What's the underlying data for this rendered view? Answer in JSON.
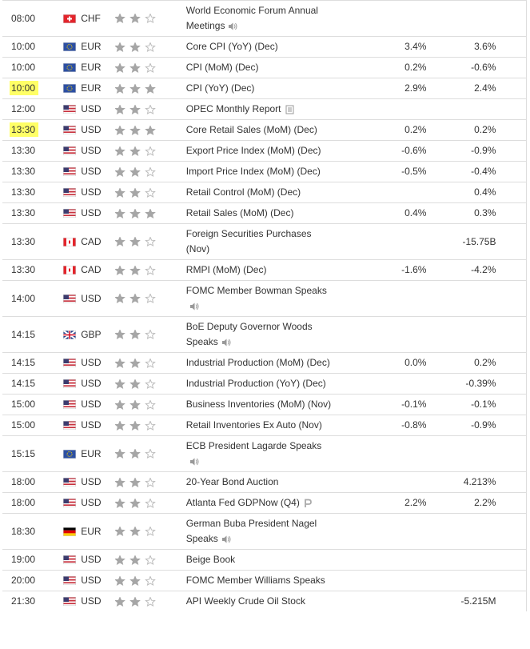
{
  "table": {
    "rows": [
      {
        "time": "08:00",
        "currency": "CHF",
        "importance": 2,
        "event": "World Economic Forum Annual Meetings"
      },
      {
        "time": "10:00",
        "currency": "EUR",
        "importance": 2,
        "event": "Core CPI (YoY) (Dec)",
        "forecast": "3.4%",
        "previous": "3.6%"
      },
      {
        "time": "10:00",
        "currency": "EUR",
        "importance": 2,
        "event": "CPI (MoM) (Dec)",
        "forecast": "0.2%",
        "previous": "-0.6%"
      },
      {
        "time": "10:00",
        "currency": "EUR",
        "importance": 3,
        "event": "CPI (YoY) (Dec)",
        "forecast": "2.9%",
        "previous": "2.4%",
        "highlighted": true
      },
      {
        "time": "12:00",
        "currency": "USD",
        "importance": 2,
        "event": "OPEC Monthly Report"
      },
      {
        "time": "13:30",
        "currency": "USD",
        "importance": 3,
        "event": "Core Retail Sales (MoM) (Dec)",
        "forecast": "0.2%",
        "previous": "0.2%",
        "highlighted": true
      },
      {
        "time": "13:30",
        "currency": "USD",
        "importance": 2,
        "event": "Export Price Index (MoM) (Dec)",
        "forecast": "-0.6%",
        "previous": "-0.9%"
      },
      {
        "time": "13:30",
        "currency": "USD",
        "importance": 2,
        "event": "Import Price Index (MoM) (Dec)",
        "forecast": "-0.5%",
        "previous": "-0.4%"
      },
      {
        "time": "13:30",
        "currency": "USD",
        "importance": 2,
        "event": "Retail Control (MoM) (Dec)",
        "previous": "0.4%"
      },
      {
        "time": "13:30",
        "currency": "USD",
        "importance": 3,
        "event": "Retail Sales (MoM) (Dec)",
        "forecast": "0.4%",
        "previous": "0.3%"
      },
      {
        "time": "13:30",
        "currency": "CAD",
        "importance": 2,
        "event": "Foreign Securities Purchases (Nov)",
        "previous": "-15.75B"
      },
      {
        "time": "13:30",
        "currency": "CAD",
        "importance": 2,
        "event": "RMPI (MoM) (Dec)",
        "forecast": "-1.6%",
        "previous": "-4.2%"
      },
      {
        "time": "14:00",
        "currency": "USD",
        "importance": 2,
        "event": "FOMC Member Bowman Speaks"
      },
      {
        "time": "14:15",
        "currency": "GBP",
        "importance": 2,
        "event": "BoE Deputy Governor Woods Speaks"
      },
      {
        "time": "14:15",
        "currency": "USD",
        "importance": 2,
        "event": "Industrial Production (MoM) (Dec)",
        "forecast": "0.0%",
        "previous": "0.2%"
      },
      {
        "time": "14:15",
        "currency": "USD",
        "importance": 2,
        "event": "Industrial Production (YoY) (Dec)",
        "previous": "-0.39%"
      },
      {
        "time": "15:00",
        "currency": "USD",
        "importance": 2,
        "event": "Business Inventories (MoM) (Nov)",
        "forecast": "-0.1%",
        "previous": "-0.1%"
      },
      {
        "time": "15:00",
        "currency": "USD",
        "importance": 2,
        "event": "Retail Inventories Ex Auto (Nov)",
        "forecast": "-0.8%",
        "previous": "-0.9%"
      },
      {
        "time": "15:15",
        "currency": "EUR",
        "importance": 2,
        "event": "ECB President Lagarde Speaks"
      },
      {
        "time": "18:00",
        "currency": "USD",
        "importance": 2,
        "event": "20-Year Bond Auction",
        "previous": "4.213%"
      },
      {
        "time": "18:00",
        "currency": "USD",
        "importance": 2,
        "event": "Atlanta Fed GDPNow (Q4)",
        "forecast": "2.2%",
        "previous": "2.2%"
      },
      {
        "time": "18:30",
        "currency": "EUR",
        "importance": 2,
        "event": "German Buba President Nagel Speaks"
      },
      {
        "time": "19:00",
        "currency": "USD",
        "importance": 2,
        "event": "Beige Book"
      },
      {
        "time": "20:00",
        "currency": "USD",
        "importance": 2,
        "event": "FOMC Member Williams Speaks"
      },
      {
        "time": "21:30",
        "currency": "USD",
        "importance": 2,
        "event": "API Weekly Crude Oil Stock",
        "previous": "-5.215M"
      }
    ]
  }
}
